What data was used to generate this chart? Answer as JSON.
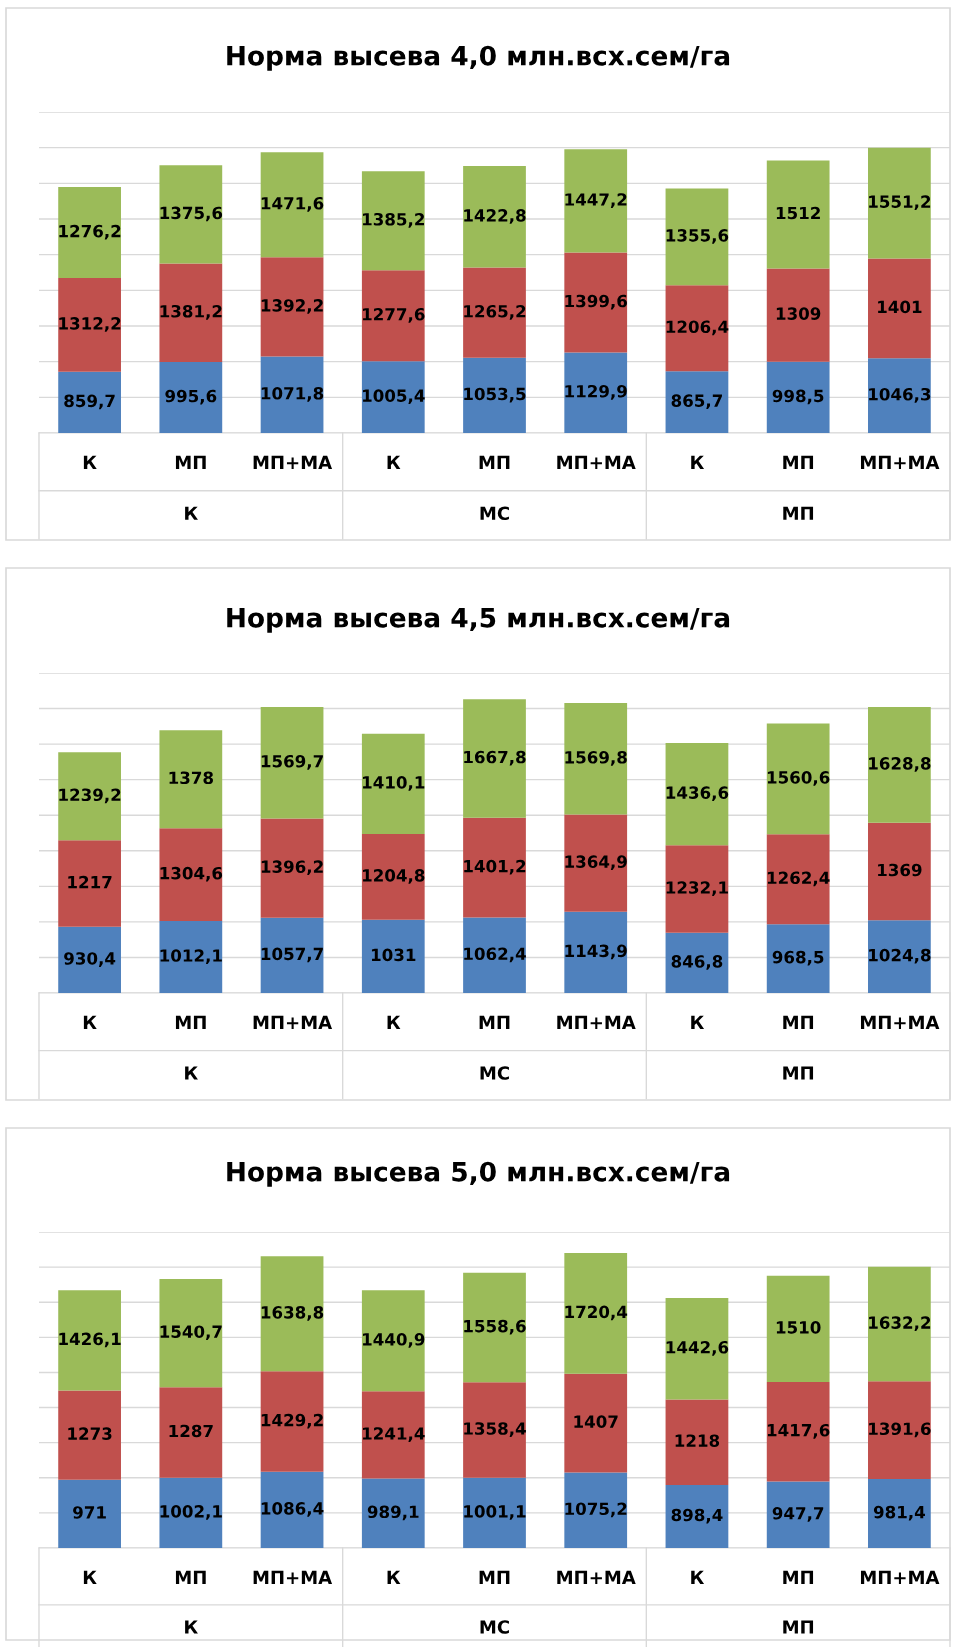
{
  "chart_data": [
    {
      "type": "bar",
      "title": "Норма высева 4,0 млн.всх.сем/га",
      "stacked": true,
      "grid": "y",
      "tick_labels": "x",
      "categories": [
        "К",
        "МП",
        "МП+МА",
        "К",
        "МП",
        "МП+МА",
        "К",
        "МП",
        "МП+МА"
      ],
      "annotations": [
        "К",
        "МС",
        "МП"
      ],
      "ylim": [
        0,
        4500
      ],
      "yticks": [
        {
          "value": 0,
          "label": null
        },
        {
          "value": 500,
          "label": null
        },
        {
          "value": 1000,
          "label": null
        },
        {
          "value": 1500,
          "label": null
        },
        {
          "value": 2000,
          "label": null
        },
        {
          "value": 2500,
          "label": null
        },
        {
          "value": 3000,
          "label": null
        },
        {
          "value": 3500,
          "label": null
        },
        {
          "value": 4000,
          "label": null
        },
        {
          "value": 4500,
          "label": null
        }
      ],
      "series": [
        {
          "color": "#4f81bd",
          "values": [
            859.7,
            995.6,
            1071.8,
            1005.4,
            1053.5,
            1129.9,
            865.7,
            998.5,
            1046.3
          ],
          "value_labels": [
            "859,7",
            "995,6",
            "1071,8",
            "1005,4",
            "1053,5",
            "1129,9",
            "865,7",
            "998,5",
            "1046,3"
          ]
        },
        {
          "color": "#c0504d",
          "values": [
            1312.2,
            1381.2,
            1392.2,
            1277.6,
            1265.2,
            1399.6,
            1206.4,
            1309,
            1401
          ],
          "value_labels": [
            "1312,2",
            "1381,2",
            "1392,2",
            "1277,6",
            "1265,2",
            "1399,6",
            "1206,4",
            "1309",
            "1401"
          ]
        },
        {
          "color": "#9bbb59",
          "values": [
            1276.2,
            1375.6,
            1471.6,
            1385.2,
            1422.8,
            1447.2,
            1355.6,
            1512,
            1551.2
          ],
          "value_labels": [
            "1276,2",
            "1375,6",
            "1471,6",
            "1385,2",
            "1422,8",
            "1447,2",
            "1355,6",
            "1512",
            "1551,2"
          ]
        }
      ]
    },
    {
      "type": "bar",
      "title": "Норма высева 4,5 млн.всх.сем/га",
      "stacked": true,
      "grid": "y",
      "tick_labels": "x",
      "categories": [
        "К",
        "МП",
        "МП+МА",
        "К",
        "МП",
        "МП+МА",
        "К",
        "МП",
        "МП+МА"
      ],
      "annotations": [
        "К",
        "МС",
        "МП"
      ],
      "ylim": [
        0,
        4500
      ],
      "yticks": [
        {
          "value": 0,
          "label": null
        },
        {
          "value": 500,
          "label": null
        },
        {
          "value": 1000,
          "label": null
        },
        {
          "value": 1500,
          "label": null
        },
        {
          "value": 2000,
          "label": null
        },
        {
          "value": 2500,
          "label": null
        },
        {
          "value": 3000,
          "label": null
        },
        {
          "value": 3500,
          "label": null
        },
        {
          "value": 4000,
          "label": null
        },
        {
          "value": 4500,
          "label": null
        }
      ],
      "series": [
        {
          "color": "#4f81bd",
          "values": [
            930.4,
            1012.1,
            1057.7,
            1031,
            1062.4,
            1143.9,
            846.8,
            968.5,
            1024.8
          ],
          "value_labels": [
            "930,4",
            "1012,1",
            "1057,7",
            "1031",
            "1062,4",
            "1143,9",
            "846,8",
            "968,5",
            "1024,8"
          ]
        },
        {
          "color": "#c0504d",
          "values": [
            1217,
            1304.6,
            1396.2,
            1204.8,
            1401.2,
            1364.9,
            1232.1,
            1262.4,
            1369
          ],
          "value_labels": [
            "1217",
            "1304,6",
            "1396,2",
            "1204,8",
            "1401,2",
            "1364,9",
            "1232,1",
            "1262,4",
            "1369"
          ]
        },
        {
          "color": "#9bbb59",
          "values": [
            1239.2,
            1378,
            1569.7,
            1410.1,
            1667.8,
            1569.8,
            1436.6,
            1560.6,
            1628.8
          ],
          "value_labels": [
            "1239,2",
            "1378",
            "1569,7",
            "1410,1",
            "1667,8",
            "1569,8",
            "1436,6",
            "1560,6",
            "1628,8"
          ]
        }
      ]
    },
    {
      "type": "bar",
      "title": "Норма высева 5,0 млн.всх.сем/га",
      "stacked": true,
      "grid": "y",
      "tick_labels": "x",
      "categories": [
        "К",
        "МП",
        "МП+МА",
        "К",
        "МП",
        "МП+МА",
        "К",
        "МП",
        "МП+МА"
      ],
      "annotations": [
        "К",
        "МС",
        "МП"
      ],
      "ylim": [
        0,
        4500
      ],
      "yticks": [
        {
          "value": 0,
          "label": null
        },
        {
          "value": 500,
          "label": null
        },
        {
          "value": 1000,
          "label": null
        },
        {
          "value": 1500,
          "label": null
        },
        {
          "value": 2000,
          "label": null
        },
        {
          "value": 2500,
          "label": null
        },
        {
          "value": 3000,
          "label": null
        },
        {
          "value": 3500,
          "label": null
        },
        {
          "value": 4000,
          "label": null
        },
        {
          "value": 4500,
          "label": null
        }
      ],
      "series": [
        {
          "color": "#4f81bd",
          "values": [
            971,
            1002.1,
            1086.4,
            989.1,
            1001.1,
            1075.2,
            898.4,
            947.7,
            981.4
          ],
          "value_labels": [
            "971",
            "1002,1",
            "1086,4",
            "989,1",
            "1001,1",
            "1075,2",
            "898,4",
            "947,7",
            "981,4"
          ]
        },
        {
          "color": "#c0504d",
          "values": [
            1273,
            1287,
            1429.2,
            1241.4,
            1358.4,
            1407,
            1218,
            1417.6,
            1391.6
          ],
          "value_labels": [
            "1273",
            "1287",
            "1429,2",
            "1241,4",
            "1358,4",
            "1407",
            "1218",
            "1417,6",
            "1391,6"
          ]
        },
        {
          "color": "#9bbb59",
          "values": [
            1426.1,
            1540.7,
            1638.8,
            1440.9,
            1558.6,
            1720.4,
            1442.6,
            1510,
            1632.2
          ],
          "value_labels": [
            "1426,1",
            "1540,7",
            "1638,8",
            "1440,9",
            "1558,6",
            "1720,4",
            "1442,6",
            "1510",
            "1632,2"
          ]
        }
      ]
    }
  ]
}
